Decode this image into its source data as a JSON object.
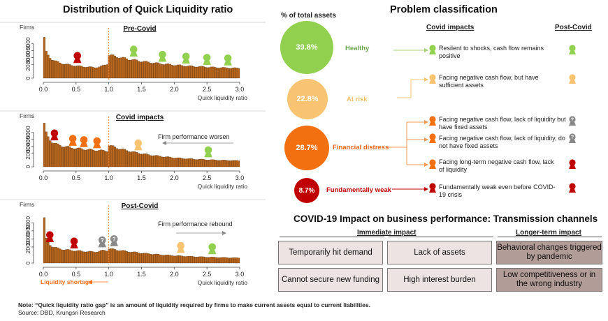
{
  "left_title": "Distribution of Quick Liquidity ratio",
  "right_title": "Problem classification",
  "bottom_right_title": "COVID-19 Impact on business performance: Transmission channels",
  "colors": {
    "bar": "#b5651d",
    "healthy": "#92d050",
    "at_risk": "#f8c471",
    "financial_distress": "#f27010",
    "fundamentally_weak": "#c00000",
    "shock": "#888888"
  },
  "chart_data": [
    {
      "type": "bar",
      "title": "Pre-Covid",
      "ylabel": "Firms",
      "xlabel": "Quick liquidity ratio",
      "ylim": [
        0,
        6500
      ],
      "xlim": [
        0,
        3.0
      ],
      "yticks": [
        "0",
        "2000",
        "3000",
        "4000",
        "5000"
      ],
      "xticks": [
        "0.0",
        "0.5",
        "1.0",
        "1.5",
        "2.0",
        "2.5",
        "3.0"
      ],
      "bin_width": 0.03,
      "shape": "pre",
      "annotation": "",
      "markers": [
        {
          "x": 0.52,
          "status": "fundamentally_weak"
        },
        {
          "x": 1.38,
          "status": "healthy"
        },
        {
          "x": 1.82,
          "status": "healthy"
        },
        {
          "x": 2.18,
          "status": "healthy"
        },
        {
          "x": 2.5,
          "status": "healthy"
        },
        {
          "x": 2.82,
          "status": "healthy"
        }
      ]
    },
    {
      "type": "bar",
      "title": "Covid impacts",
      "ylabel": "Firms",
      "xlabel": "Quick liquidity ratio",
      "ylim": [
        0,
        6500
      ],
      "xlim": [
        0,
        3.0
      ],
      "yticks": [
        "0",
        "2000",
        "3000",
        "4000",
        "5000"
      ],
      "xticks": [
        "0.0",
        "0.5",
        "1.0",
        "1.5",
        "2.0",
        "2.5",
        "3.0"
      ],
      "bin_width": 0.03,
      "shape": "covid",
      "annotation": "Firm performance worsen",
      "markers": [
        {
          "x": 0.17,
          "status": "fundamentally_weak"
        },
        {
          "x": 0.45,
          "status": "financial_distress"
        },
        {
          "x": 0.62,
          "status": "financial_distress"
        },
        {
          "x": 0.82,
          "status": "financial_distress"
        },
        {
          "x": 1.45,
          "status": "at_risk"
        },
        {
          "x": 2.52,
          "status": "healthy"
        }
      ]
    },
    {
      "type": "bar",
      "title": "Post-Covid",
      "ylabel": "Firms",
      "xlabel": "Quick liquidity ratio",
      "ylim": [
        0,
        6500
      ],
      "xlim": [
        0,
        3.0
      ],
      "yticks": [
        "0",
        "2000",
        "3000",
        "4000",
        "5000"
      ],
      "xticks": [
        "0.0",
        "0.5",
        "1.0",
        "1.5",
        "2.0",
        "2.5",
        "3.0"
      ],
      "bin_width": 0.03,
      "shape": "post",
      "annotation": "Firm performance rebound",
      "liquidity_label": "Liquidity shortage",
      "markers": [
        {
          "x": 0.1,
          "status": "fundamentally_weak"
        },
        {
          "x": 0.47,
          "status": "fundamentally_weak"
        },
        {
          "x": 0.9,
          "status": "shock"
        },
        {
          "x": 1.08,
          "status": "shock"
        },
        {
          "x": 2.1,
          "status": "at_risk"
        },
        {
          "x": 2.58,
          "status": "healthy"
        }
      ]
    }
  ],
  "classification": {
    "share_header": "% of total assets",
    "covid_header": "Covid impacts",
    "post_header": "Post-Covid",
    "rows": [
      {
        "pct": "39.8%",
        "label": "Healthy",
        "color": "#92d050",
        "label_color": "#6aa84f"
      },
      {
        "pct": "22.8%",
        "label": "At risk",
        "color": "#f8c471",
        "label_color": "#f6c26b"
      },
      {
        "pct": "28.7%",
        "label": "Financial distress",
        "color": "#f27010",
        "label_color": "#e8651c"
      },
      {
        "pct": "8.7%",
        "label": "Fundamentally weak",
        "color": "#c00000",
        "label_color": "#c00000"
      }
    ],
    "impacts": [
      {
        "text": "Resilent to shocks, cash flow remains positive",
        "icon": "healthy",
        "post": "healthy"
      },
      {
        "text": "Facing negative cash flow, but have sufficient assets",
        "icon": "at_risk",
        "post": "at_risk"
      },
      {
        "text": "Facing negative cash flow, lack of liquidity but have fixed assets",
        "icon": "financial_distress",
        "post": "shock"
      },
      {
        "text": "Facing negative cash flow, lack of liquidity, do not have fixed assets",
        "icon": "financial_distress",
        "post": "shock"
      },
      {
        "text": "Facing long-term negative cash flow, lack of liquidity",
        "icon": "financial_distress",
        "post": "fundamentally_weak"
      },
      {
        "text": "Fundamentally weak even before COVID-19 crisis",
        "icon": "fundamentally_weak",
        "post": "fundamentally_weak"
      }
    ]
  },
  "channels": {
    "immediate_header": "Immediate impact",
    "longer_header": "Longer-term impact",
    "immediate": [
      "Temporarily hit demand",
      "Lack of assets",
      "Cannot secure new funding",
      "High interest burden"
    ],
    "longer": [
      "Behavioral changes triggered by pandemic",
      "Low competitiveness or in the wrong industry"
    ]
  },
  "note": "Note: “Quick liquidity ratio gap” is an amount of liquidity required by firms to make current assets equal to current liabilities.",
  "source": "Source: DBD, Krungsri Research"
}
